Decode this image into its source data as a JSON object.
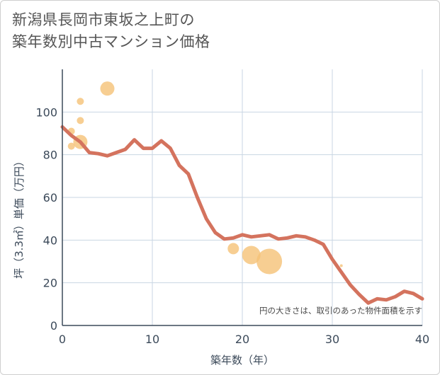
{
  "title": {
    "line1": "新潟県長岡市東坂之上町の",
    "line2": "築年数別中古マンション価格"
  },
  "chart_data": {
    "type": "line",
    "xlabel": "築年数（年）",
    "ylabel": "坪（3.3㎡）単価（万円）",
    "xlim": [
      0,
      40
    ],
    "ylim": [
      0,
      120
    ],
    "x_ticks": [
      0,
      10,
      20,
      30,
      40
    ],
    "y_ticks": [
      0,
      20,
      40,
      60,
      80,
      100
    ],
    "grid": true,
    "note": "円の大きさは、取引のあった物件面積を示す",
    "line": {
      "x": [
        0,
        1,
        2,
        3,
        4,
        5,
        6,
        7,
        8,
        9,
        10,
        11,
        12,
        13,
        14,
        15,
        16,
        17,
        18,
        19,
        20,
        21,
        22,
        23,
        24,
        25,
        26,
        27,
        28,
        29,
        30,
        31,
        32,
        33,
        34,
        35,
        36,
        37,
        38,
        39,
        40
      ],
      "y": [
        93,
        89,
        86,
        81,
        80.5,
        79.5,
        81,
        82.5,
        87,
        83,
        83,
        86.5,
        83,
        75,
        71,
        60,
        50,
        43.5,
        40.5,
        41,
        42.5,
        41.5,
        42,
        42.5,
        40.5,
        41,
        42,
        41.5,
        40,
        38,
        31,
        25,
        19,
        14.5,
        10.5,
        12.5,
        12,
        13.5,
        16,
        15,
        12.5
      ]
    },
    "bubbles": [
      {
        "x": 1,
        "y": 91,
        "size": 5
      },
      {
        "x": 1,
        "y": 84,
        "size": 5
      },
      {
        "x": 2,
        "y": 105,
        "size": 5
      },
      {
        "x": 2,
        "y": 96,
        "size": 5
      },
      {
        "x": 2,
        "y": 86,
        "size": 10
      },
      {
        "x": 5,
        "y": 111,
        "size": 10
      },
      {
        "x": 19,
        "y": 36,
        "size": 8
      },
      {
        "x": 21,
        "y": 33,
        "size": 13
      },
      {
        "x": 23,
        "y": 30,
        "size": 18
      },
      {
        "x": 31,
        "y": 28,
        "size": 2
      }
    ],
    "colors": {
      "line": "#d4735e",
      "bubble": "#f5c277",
      "grid": "#c8d6e3",
      "axis": "#3c4a5a"
    }
  }
}
